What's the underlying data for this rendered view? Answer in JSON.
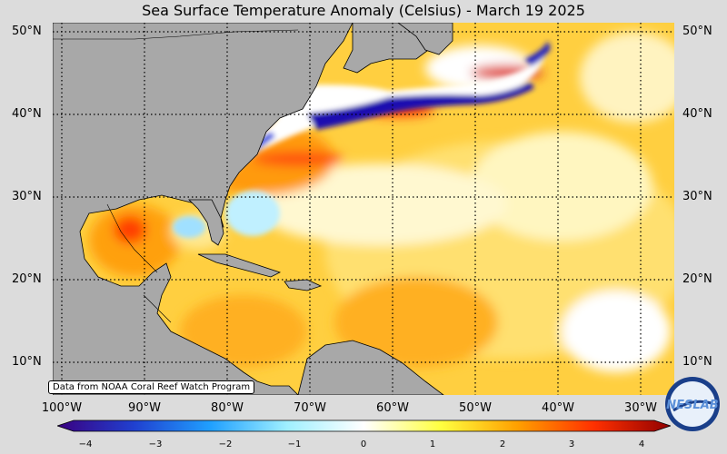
{
  "title": "Sea Surface Temperature Anomaly (Celsius) - March 19 2025",
  "credit": "Data from NOAA Coral Reef Watch Program",
  "logo_text": "NESDIS STAR LAB",
  "lat_labels": [
    "50°N",
    "40°N",
    "30°N",
    "20°N",
    "10°N"
  ],
  "lon_labels": [
    "100°W",
    "90°W",
    "80°W",
    "70°W",
    "60°W",
    "50°W",
    "40°W",
    "30°W"
  ],
  "colorbar": {
    "min": -4,
    "max": 4,
    "ticks": [
      "−4",
      "−3",
      "−2",
      "−1",
      "0",
      "1",
      "2",
      "3",
      "4"
    ],
    "colors": [
      "#3a0080",
      "#2040d0",
      "#20a0ff",
      "#a0f0ff",
      "#ffffff",
      "#ffff40",
      "#ffa000",
      "#ff3000",
      "#900000"
    ]
  },
  "colors": {
    "land": "#a8a8a8",
    "ocean_base": "#ffcf40",
    "cold": "#2020c0",
    "hot": "#d00000"
  },
  "map_extent": {
    "lon": [
      -100,
      -25
    ],
    "lat": [
      6,
      51
    ]
  }
}
